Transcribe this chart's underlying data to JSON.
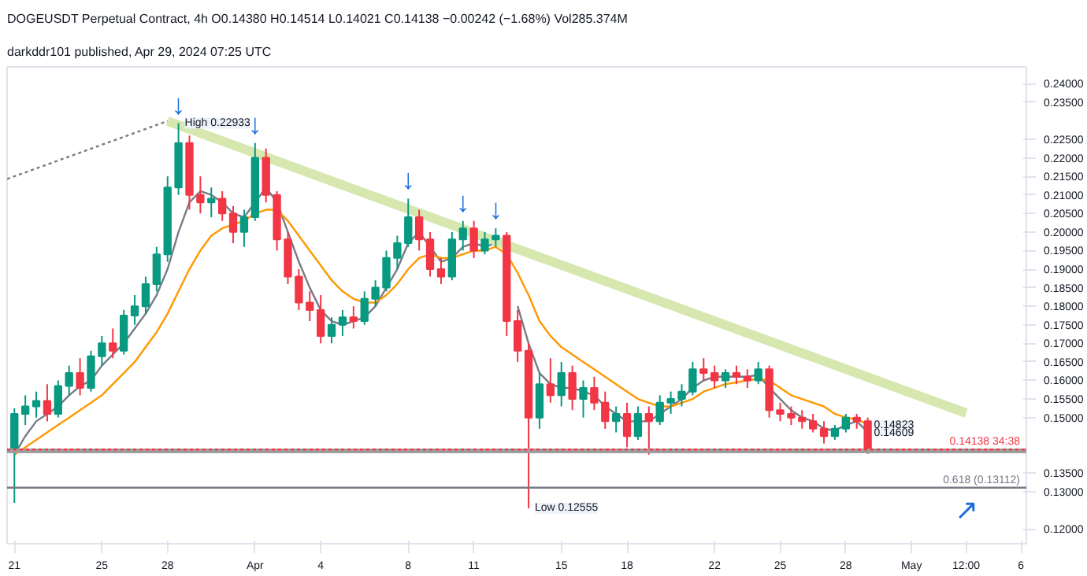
{
  "chart_data": {
    "type": "candlestick",
    "title": "darkddr101 published, Apr 29, 2024 07:25 UTC",
    "subtitle": "DOGEUSDT Perpetual Contract, 4h  O0.14380 H0.14514 L0.14021 C0.14138 −0.00242 (−1.68%) Vol285.374M",
    "x": [
      "2024-03-21T00:00",
      "2024-03-21T12:00",
      "2024-03-22T00:00",
      "2024-03-22T12:00",
      "2024-03-23T00:00",
      "2024-03-23T12:00",
      "2024-03-24T00:00",
      "2024-03-24T12:00",
      "2024-03-25T00:00",
      "2024-03-25T12:00",
      "2024-03-26T00:00",
      "2024-03-26T12:00",
      "2024-03-27T00:00",
      "2024-03-27T12:00",
      "2024-03-28T00:00",
      "2024-03-28T12:00",
      "2024-03-29T00:00",
      "2024-03-29T12:00",
      "2024-03-30T00:00",
      "2024-03-30T12:00",
      "2024-03-31T00:00",
      "2024-03-31T12:00",
      "2024-04-01T00:00",
      "2024-04-01T12:00",
      "2024-04-02T00:00",
      "2024-04-02T12:00",
      "2024-04-03T00:00",
      "2024-04-03T12:00",
      "2024-04-04T00:00",
      "2024-04-04T12:00",
      "2024-04-05T00:00",
      "2024-04-05T12:00",
      "2024-04-06T00:00",
      "2024-04-06T12:00",
      "2024-04-07T00:00",
      "2024-04-07T12:00",
      "2024-04-08T00:00",
      "2024-04-08T12:00",
      "2024-04-09T00:00",
      "2024-04-09T12:00",
      "2024-04-10T00:00",
      "2024-04-10T12:00",
      "2024-04-11T00:00",
      "2024-04-11T12:00",
      "2024-04-12T00:00",
      "2024-04-12T12:00",
      "2024-04-13T00:00",
      "2024-04-13T12:00",
      "2024-04-14T00:00",
      "2024-04-14T12:00",
      "2024-04-15T00:00",
      "2024-04-15T12:00",
      "2024-04-16T00:00",
      "2024-04-16T12:00",
      "2024-04-17T00:00",
      "2024-04-17T12:00",
      "2024-04-18T00:00",
      "2024-04-18T12:00",
      "2024-04-19T00:00",
      "2024-04-19T12:00",
      "2024-04-20T00:00",
      "2024-04-20T12:00",
      "2024-04-21T00:00",
      "2024-04-21T12:00",
      "2024-04-22T00:00",
      "2024-04-22T12:00",
      "2024-04-23T00:00",
      "2024-04-23T12:00",
      "2024-04-24T00:00",
      "2024-04-24T12:00",
      "2024-04-25T00:00",
      "2024-04-25T12:00",
      "2024-04-26T00:00",
      "2024-04-26T12:00",
      "2024-04-27T00:00",
      "2024-04-27T12:00",
      "2024-04-28T00:00",
      "2024-04-28T12:00",
      "2024-04-29T00:00"
    ],
    "ohlc": [
      [
        0.141,
        0.1525,
        0.127,
        0.151
      ],
      [
        0.151,
        0.156,
        0.148,
        0.153
      ],
      [
        0.153,
        0.157,
        0.15,
        0.1545
      ],
      [
        0.1545,
        0.159,
        0.149,
        0.151
      ],
      [
        0.151,
        0.16,
        0.15,
        0.1585
      ],
      [
        0.1585,
        0.164,
        0.156,
        0.162
      ],
      [
        0.162,
        0.166,
        0.156,
        0.158
      ],
      [
        0.158,
        0.168,
        0.157,
        0.1665
      ],
      [
        0.1665,
        0.172,
        0.164,
        0.17
      ],
      [
        0.17,
        0.174,
        0.166,
        0.168
      ],
      [
        0.168,
        0.179,
        0.167,
        0.1775
      ],
      [
        0.1775,
        0.183,
        0.175,
        0.18
      ],
      [
        0.18,
        0.188,
        0.178,
        0.186
      ],
      [
        0.186,
        0.196,
        0.184,
        0.194
      ],
      [
        0.194,
        0.215,
        0.192,
        0.212
      ],
      [
        0.212,
        0.22933,
        0.21,
        0.224
      ],
      [
        0.224,
        0.226,
        0.206,
        0.21
      ],
      [
        0.21,
        0.215,
        0.205,
        0.208
      ],
      [
        0.208,
        0.212,
        0.204,
        0.209
      ],
      [
        0.209,
        0.211,
        0.203,
        0.205
      ],
      [
        0.205,
        0.207,
        0.197,
        0.2
      ],
      [
        0.2,
        0.206,
        0.196,
        0.204
      ],
      [
        0.204,
        0.224,
        0.203,
        0.22
      ],
      [
        0.22,
        0.2225,
        0.208,
        0.21
      ],
      [
        0.21,
        0.211,
        0.195,
        0.198
      ],
      [
        0.198,
        0.2,
        0.186,
        0.188
      ],
      [
        0.188,
        0.19,
        0.179,
        0.181
      ],
      [
        0.181,
        0.184,
        0.176,
        0.179
      ],
      [
        0.179,
        0.183,
        0.17,
        0.172
      ],
      [
        0.172,
        0.177,
        0.17,
        0.175
      ],
      [
        0.175,
        0.179,
        0.172,
        0.177
      ],
      [
        0.177,
        0.18,
        0.174,
        0.176
      ],
      [
        0.176,
        0.184,
        0.175,
        0.182
      ],
      [
        0.182,
        0.187,
        0.18,
        0.185
      ],
      [
        0.185,
        0.195,
        0.184,
        0.193
      ],
      [
        0.193,
        0.199,
        0.19,
        0.197
      ],
      [
        0.197,
        0.209,
        0.196,
        0.204
      ],
      [
        0.204,
        0.206,
        0.195,
        0.198
      ],
      [
        0.198,
        0.2,
        0.188,
        0.19
      ],
      [
        0.19,
        0.193,
        0.186,
        0.188
      ],
      [
        0.188,
        0.2,
        0.187,
        0.198
      ],
      [
        0.198,
        0.203,
        0.195,
        0.201
      ],
      [
        0.201,
        0.203,
        0.193,
        0.195
      ],
      [
        0.195,
        0.2,
        0.194,
        0.198
      ],
      [
        0.198,
        0.201,
        0.196,
        0.199
      ],
      [
        0.199,
        0.2,
        0.172,
        0.176
      ],
      [
        0.176,
        0.179,
        0.165,
        0.168
      ],
      [
        0.168,
        0.17,
        0.12555,
        0.15
      ],
      [
        0.15,
        0.162,
        0.147,
        0.159
      ],
      [
        0.159,
        0.166,
        0.154,
        0.156
      ],
      [
        0.156,
        0.165,
        0.153,
        0.162
      ],
      [
        0.162,
        0.164,
        0.152,
        0.155
      ],
      [
        0.155,
        0.16,
        0.15,
        0.158
      ],
      [
        0.158,
        0.161,
        0.152,
        0.154
      ],
      [
        0.154,
        0.157,
        0.147,
        0.149
      ],
      [
        0.149,
        0.153,
        0.146,
        0.151
      ],
      [
        0.151,
        0.154,
        0.142,
        0.145
      ],
      [
        0.145,
        0.153,
        0.144,
        0.151
      ],
      [
        0.151,
        0.153,
        0.14,
        0.149
      ],
      [
        0.149,
        0.156,
        0.148,
        0.154
      ],
      [
        0.154,
        0.157,
        0.151,
        0.155
      ],
      [
        0.155,
        0.159,
        0.153,
        0.157
      ],
      [
        0.157,
        0.165,
        0.156,
        0.163
      ],
      [
        0.163,
        0.166,
        0.16,
        0.162
      ],
      [
        0.162,
        0.164,
        0.158,
        0.16
      ],
      [
        0.16,
        0.163,
        0.158,
        0.162
      ],
      [
        0.162,
        0.164,
        0.159,
        0.161
      ],
      [
        0.161,
        0.163,
        0.158,
        0.16
      ],
      [
        0.16,
        0.165,
        0.159,
        0.163
      ],
      [
        0.163,
        0.164,
        0.15,
        0.152
      ],
      [
        0.152,
        0.154,
        0.149,
        0.151
      ],
      [
        0.151,
        0.153,
        0.148,
        0.15
      ],
      [
        0.15,
        0.152,
        0.147,
        0.149
      ],
      [
        0.149,
        0.151,
        0.146,
        0.147
      ],
      [
        0.147,
        0.149,
        0.143,
        0.145
      ],
      [
        0.145,
        0.148,
        0.144,
        0.147
      ],
      [
        0.147,
        0.151,
        0.146,
        0.15
      ],
      [
        0.15,
        0.151,
        0.147,
        0.149
      ],
      [
        0.149,
        0.15,
        0.1402,
        0.1414
      ]
    ],
    "colors": [
      "#089981",
      "#089981",
      "#089981",
      "#f23645",
      "#089981",
      "#089981",
      "#f23645",
      "#089981",
      "#089981",
      "#f23645",
      "#089981",
      "#089981",
      "#089981",
      "#089981",
      "#089981",
      "#089981",
      "#f23645",
      "#f23645",
      "#089981",
      "#f23645",
      "#f23645",
      "#089981",
      "#089981",
      "#f23645",
      "#f23645",
      "#f23645",
      "#f23645",
      "#f23645",
      "#f23645",
      "#089981",
      "#089981",
      "#f23645",
      "#089981",
      "#089981",
      "#089981",
      "#089981",
      "#089981",
      "#f23645",
      "#f23645",
      "#f23645",
      "#089981",
      "#089981",
      "#f23645",
      "#089981",
      "#089981",
      "#f23645",
      "#f23645",
      "#f23645",
      "#089981",
      "#f23645",
      "#089981",
      "#f23645",
      "#089981",
      "#f23645",
      "#f23645",
      "#089981",
      "#f23645",
      "#089981",
      "#f23645",
      "#089981",
      "#089981",
      "#089981",
      "#089981",
      "#f23645",
      "#f23645",
      "#089981",
      "#f23645",
      "#f23645",
      "#089981",
      "#f23645",
      "#f23645",
      "#f23645",
      "#f23645",
      "#f23645",
      "#f23645",
      "#089981",
      "#089981",
      "#f23645",
      "#f23645"
    ],
    "series": [
      {
        "type": "line",
        "color": "#787b86",
        "values": [
          0.14,
          0.145,
          0.149,
          0.151,
          0.153,
          0.156,
          0.1585,
          0.16,
          0.164,
          0.167,
          0.17,
          0.174,
          0.178,
          0.183,
          0.19,
          0.2,
          0.208,
          0.211,
          0.21,
          0.208,
          0.205,
          0.204,
          0.208,
          0.212,
          0.208,
          0.2,
          0.192,
          0.185,
          0.179,
          0.176,
          0.175,
          0.176,
          0.177,
          0.18,
          0.185,
          0.19,
          0.197,
          0.2,
          0.196,
          0.192,
          0.193,
          0.196,
          0.197,
          0.196,
          0.197,
          null,
          0.18,
          0.17,
          0.162,
          0.159,
          0.158,
          0.158,
          0.157,
          0.156,
          0.153,
          0.151,
          0.149,
          0.149,
          0.149,
          0.151,
          0.153,
          0.155,
          0.158,
          0.16,
          0.161,
          0.161,
          0.161,
          0.161,
          0.1615,
          0.158,
          0.155,
          0.152,
          0.15,
          0.149,
          0.147,
          0.1465,
          0.148,
          0.149,
          0.1461
        ]
      },
      {
        "type": "line",
        "color": "#ff9800",
        "values": [
          0.14,
          0.142,
          0.144,
          0.146,
          0.148,
          0.15,
          0.152,
          0.154,
          0.156,
          0.159,
          0.162,
          0.165,
          0.169,
          0.173,
          0.178,
          0.184,
          0.19,
          0.195,
          0.199,
          0.201,
          0.202,
          0.203,
          0.205,
          0.206,
          0.206,
          0.203,
          0.199,
          0.195,
          0.191,
          0.187,
          0.184,
          0.182,
          0.181,
          0.181,
          0.183,
          0.186,
          0.19,
          0.193,
          0.194,
          0.193,
          0.193,
          0.194,
          0.195,
          0.195,
          0.196,
          0.194,
          0.189,
          0.183,
          0.176,
          0.172,
          0.169,
          0.167,
          0.165,
          0.163,
          0.161,
          0.159,
          0.157,
          0.155,
          0.154,
          0.153,
          0.153,
          0.154,
          0.155,
          0.157,
          0.158,
          0.159,
          0.1595,
          0.16,
          0.1605,
          0.16,
          0.158,
          0.156,
          0.155,
          0.154,
          0.153,
          0.151,
          0.15,
          0.1495,
          0.1482
        ]
      },
      {
        "type": "line",
        "color": "#d6e8b0",
        "x": [
          "2024-03-28T00:00",
          "2024-05-03T12:00"
        ],
        "values": [
          0.2299,
          0.1512
        ]
      },
      {
        "type": "line",
        "color": "#787b86",
        "line_style": "dotted",
        "x": [
          "2024-03-20T16:00",
          "2024-03-28T00:00"
        ],
        "values": [
          0.2143,
          0.2299
        ]
      }
    ],
    "ref_lines": [
      {
        "axis": "y",
        "value": 0.141,
        "color": "#9e9e9e"
      },
      {
        "axis": "y",
        "value": 0.13112,
        "label": "0.618 (0.13112)",
        "color": "#787b86"
      },
      {
        "axis": "y",
        "value": 0.14138,
        "label": "0.14138 34:38",
        "color": "#f23645",
        "line_style": "dotted"
      }
    ],
    "annotations": [
      {
        "text": "High 0.22933",
        "x": "2024-03-28T12:00",
        "y": 0.22933
      },
      {
        "text": "Low 0.12555",
        "x": "2024-04-13T12:00",
        "y": 0.12555
      },
      {
        "text": "0.14823",
        "x": "2024-04-29T00:00",
        "y": 0.14823
      },
      {
        "text": "0.14609",
        "x": "2024-04-29T00:00",
        "y": 0.14609
      },
      {
        "text": "↓",
        "x": "2024-03-28T12:00",
        "y": 0.22933
      },
      {
        "text": "↓",
        "x": "2024-04-01T00:00",
        "y": 0.224
      },
      {
        "text": "↓",
        "x": "2024-04-08T00:00",
        "y": 0.209
      },
      {
        "text": "↓",
        "x": "2024-04-10T12:00",
        "y": 0.203
      },
      {
        "text": "↓",
        "x": "2024-04-12T00:00",
        "y": 0.201
      },
      {
        "text": "↗",
        "x": "2024-05-03T12:00",
        "y": 0.13112
      }
    ],
    "xlim": [
      "2024-03-20T16:00",
      "2024-05-06T06:00"
    ],
    "xticks": [
      {
        "value": "2024-03-21",
        "label": "21"
      },
      {
        "value": "2024-03-25",
        "label": "25"
      },
      {
        "value": "2024-03-28",
        "label": "28"
      },
      {
        "value": "2024-04-01",
        "label": "Apr"
      },
      {
        "value": "2024-04-04",
        "label": "4"
      },
      {
        "value": "2024-04-08",
        "label": "8"
      },
      {
        "value": "2024-04-11",
        "label": "11"
      },
      {
        "value": "2024-04-15",
        "label": "15"
      },
      {
        "value": "2024-04-18",
        "label": "18"
      },
      {
        "value": "2024-04-22",
        "label": "22"
      },
      {
        "value": "2024-04-25",
        "label": "25"
      },
      {
        "value": "2024-04-28",
        "label": "28"
      },
      {
        "value": "2024-05-01",
        "label": "May"
      },
      {
        "value": "2024-05-03T12:00",
        "label": "12:00"
      },
      {
        "value": "2024-05-06",
        "label": "6"
      }
    ],
    "ylim": [
      0.116,
      0.2445
    ],
    "yticks": [
      {
        "value": 0.24,
        "label": "0.24000"
      },
      {
        "value": 0.235,
        "label": "0.23500"
      },
      {
        "value": 0.225,
        "label": "0.22500"
      },
      {
        "value": 0.22,
        "label": "0.22000"
      },
      {
        "value": 0.215,
        "label": "0.21500"
      },
      {
        "value": 0.21,
        "label": "0.21000"
      },
      {
        "value": 0.205,
        "label": "0.20500"
      },
      {
        "value": 0.2,
        "label": "0.20000"
      },
      {
        "value": 0.195,
        "label": "0.19500"
      },
      {
        "value": 0.19,
        "label": "0.19000"
      },
      {
        "value": 0.185,
        "label": "0.18500"
      },
      {
        "value": 0.18,
        "label": "0.18000"
      },
      {
        "value": 0.175,
        "label": "0.17500"
      },
      {
        "value": 0.17,
        "label": "0.17000"
      },
      {
        "value": 0.165,
        "label": "0.16500"
      },
      {
        "value": 0.16,
        "label": "0.16000"
      },
      {
        "value": 0.155,
        "label": "0.15500"
      },
      {
        "value": 0.15,
        "label": "0.15000"
      },
      {
        "value": 0.135,
        "label": "0.13500"
      },
      {
        "value": 0.13,
        "label": "0.13000"
      },
      {
        "value": 0.12,
        "label": "0.12000"
      }
    ],
    "grid": false
  }
}
